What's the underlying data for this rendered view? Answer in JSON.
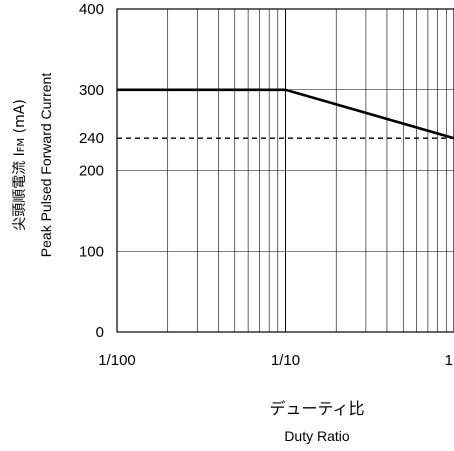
{
  "chart_data": {
    "type": "line",
    "x_scale": "log",
    "xlim": [
      0.01,
      1
    ],
    "ylim": [
      0,
      400
    ],
    "x_ticks": [
      0.01,
      0.1,
      1
    ],
    "x_tick_labels": [
      "1/100",
      "1/10",
      "1"
    ],
    "y_ticks": [
      0,
      100,
      200,
      240,
      300,
      400
    ],
    "y_tick_labels": [
      "0",
      "100",
      "200",
      "240",
      "300",
      "400"
    ],
    "grid": true,
    "xlabel_jp": "デューティ比",
    "xlabel_en": "Duty Ratio",
    "ylabel_jp": "尖頭順電流 I",
    "ylabel_sub": "FM",
    "ylabel_unit": " (mA)",
    "ylabel_en": "Peak Pulsed Forward Current",
    "series": [
      {
        "style": "solid",
        "x": [
          0.01,
          0.1,
          1
        ],
        "y": [
          300,
          300,
          240
        ]
      },
      {
        "style": "dashed",
        "x": [
          0.01,
          1
        ],
        "y": [
          240,
          240
        ]
      }
    ]
  }
}
